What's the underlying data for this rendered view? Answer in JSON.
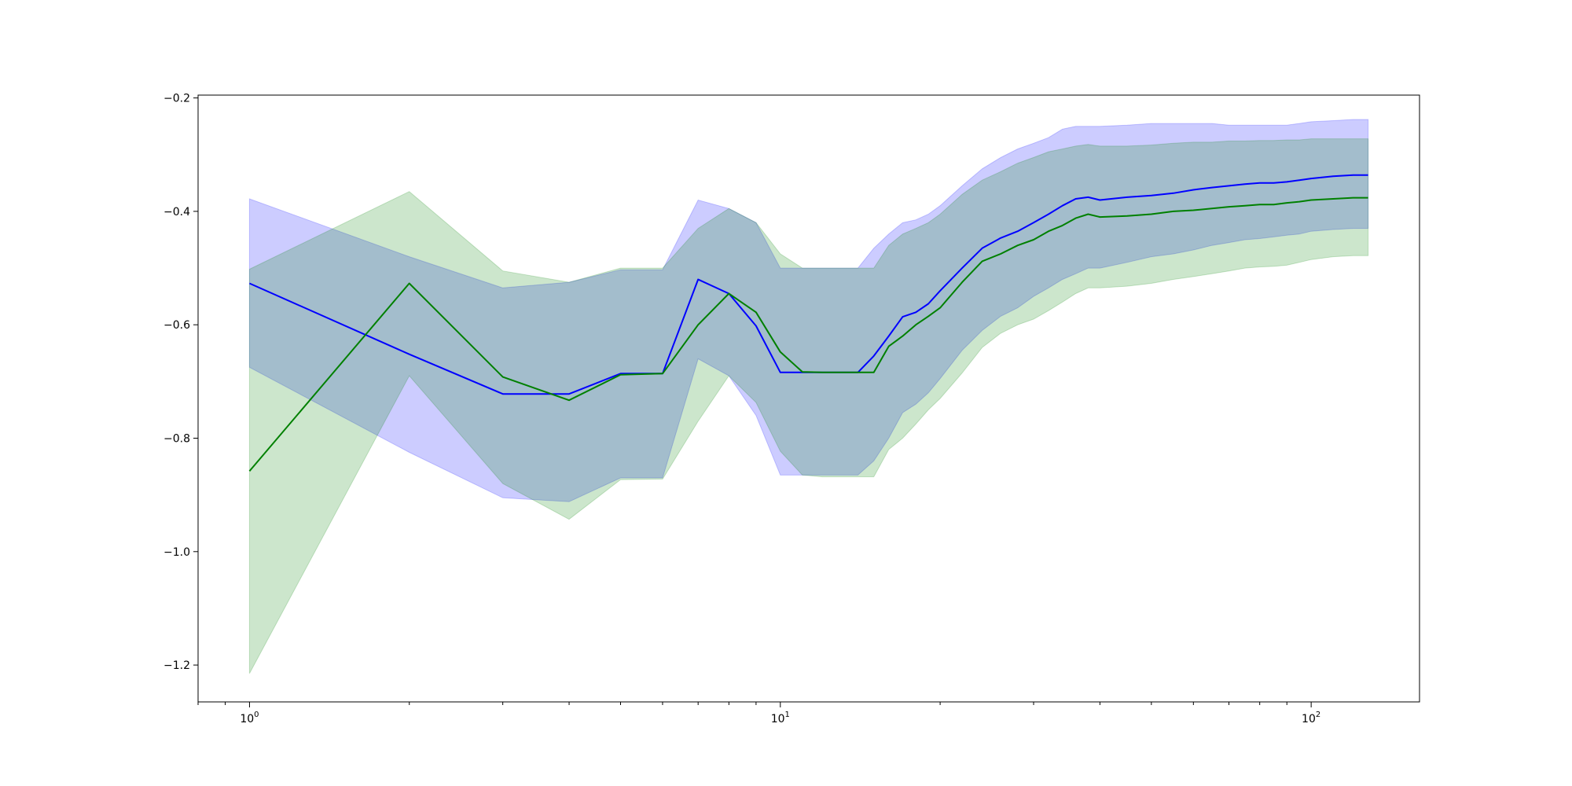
{
  "chart_data": {
    "type": "line",
    "title": "",
    "xlabel": "",
    "ylabel": "",
    "xscale": "log",
    "xlim": [
      0.8,
      160
    ],
    "ylim": [
      -1.265,
      -0.195
    ],
    "yticks": [
      -0.2,
      -0.4,
      -0.6,
      -0.8,
      -1.0,
      -1.2
    ],
    "ytick_labels": [
      "−0.2",
      "−0.4",
      "−0.6",
      "−0.8",
      "−1.0",
      "−1.2"
    ],
    "xticks": [
      1,
      10,
      100
    ],
    "xtick_labels": [
      {
        "base": "10",
        "exp": "0"
      },
      {
        "base": "10",
        "exp": "1"
      },
      {
        "base": "10",
        "exp": "2"
      }
    ],
    "grid": false,
    "series": [
      {
        "color": "#0000ff",
        "band_color": "#0000ff",
        "x": [
          1,
          2,
          3,
          4,
          5,
          6,
          7,
          8,
          9,
          10,
          11,
          12,
          13,
          14,
          15,
          16,
          17,
          18,
          19,
          20,
          22,
          24,
          26,
          28,
          30,
          32,
          34,
          36,
          38,
          40,
          45,
          50,
          55,
          60,
          65,
          70,
          75,
          80,
          85,
          90,
          95,
          100,
          110,
          120,
          128
        ],
        "y": [
          -0.527,
          -0.652,
          -0.722,
          -0.722,
          -0.686,
          -0.686,
          -0.52,
          -0.545,
          -0.602,
          -0.684,
          -0.684,
          -0.684,
          -0.684,
          -0.684,
          -0.655,
          -0.62,
          -0.586,
          -0.578,
          -0.563,
          -0.54,
          -0.5,
          -0.465,
          -0.447,
          -0.435,
          -0.42,
          -0.405,
          -0.39,
          -0.378,
          -0.375,
          -0.38,
          -0.375,
          -0.372,
          -0.368,
          -0.362,
          -0.358,
          -0.355,
          -0.352,
          -0.35,
          -0.35,
          -0.348,
          -0.345,
          -0.342,
          -0.338,
          -0.336,
          -0.336
        ],
        "y_upper": [
          -0.378,
          -0.48,
          -0.535,
          -0.525,
          -0.503,
          -0.503,
          -0.38,
          -0.395,
          -0.42,
          -0.5,
          -0.5,
          -0.5,
          -0.5,
          -0.5,
          -0.465,
          -0.44,
          -0.42,
          -0.415,
          -0.405,
          -0.39,
          -0.355,
          -0.325,
          -0.305,
          -0.29,
          -0.28,
          -0.27,
          -0.255,
          -0.25,
          -0.25,
          -0.25,
          -0.248,
          -0.245,
          -0.245,
          -0.245,
          -0.245,
          -0.248,
          -0.248,
          -0.248,
          -0.248,
          -0.248,
          -0.245,
          -0.242,
          -0.24,
          -0.238,
          -0.238
        ],
        "y_lower": [
          -0.675,
          -0.825,
          -0.905,
          -0.912,
          -0.87,
          -0.87,
          -0.66,
          -0.69,
          -0.76,
          -0.865,
          -0.865,
          -0.865,
          -0.865,
          -0.865,
          -0.84,
          -0.8,
          -0.755,
          -0.74,
          -0.72,
          -0.695,
          -0.645,
          -0.61,
          -0.585,
          -0.57,
          -0.55,
          -0.535,
          -0.52,
          -0.51,
          -0.5,
          -0.5,
          -0.49,
          -0.48,
          -0.475,
          -0.468,
          -0.46,
          -0.455,
          -0.45,
          -0.448,
          -0.445,
          -0.442,
          -0.44,
          -0.435,
          -0.432,
          -0.43,
          -0.43
        ]
      },
      {
        "color": "#008000",
        "band_color": "#008000",
        "x": [
          1,
          2,
          3,
          4,
          5,
          6,
          7,
          8,
          9,
          10,
          11,
          12,
          13,
          14,
          15,
          16,
          17,
          18,
          19,
          20,
          22,
          24,
          26,
          28,
          30,
          32,
          34,
          36,
          38,
          40,
          45,
          50,
          55,
          60,
          65,
          70,
          75,
          80,
          85,
          90,
          95,
          100,
          110,
          120,
          128
        ],
        "y": [
          -0.858,
          -0.527,
          -0.692,
          -0.733,
          -0.688,
          -0.686,
          -0.6,
          -0.545,
          -0.578,
          -0.648,
          -0.683,
          -0.684,
          -0.684,
          -0.684,
          -0.684,
          -0.638,
          -0.62,
          -0.6,
          -0.585,
          -0.57,
          -0.525,
          -0.488,
          -0.475,
          -0.46,
          -0.45,
          -0.435,
          -0.425,
          -0.412,
          -0.405,
          -0.41,
          -0.408,
          -0.405,
          -0.4,
          -0.398,
          -0.395,
          -0.392,
          -0.39,
          -0.388,
          -0.388,
          -0.385,
          -0.383,
          -0.38,
          -0.378,
          -0.376,
          -0.376
        ],
        "y_upper": [
          -0.502,
          -0.365,
          -0.505,
          -0.525,
          -0.5,
          -0.5,
          -0.43,
          -0.395,
          -0.42,
          -0.475,
          -0.5,
          -0.5,
          -0.5,
          -0.5,
          -0.5,
          -0.46,
          -0.44,
          -0.43,
          -0.42,
          -0.405,
          -0.37,
          -0.345,
          -0.33,
          -0.315,
          -0.305,
          -0.295,
          -0.29,
          -0.285,
          -0.282,
          -0.285,
          -0.285,
          -0.283,
          -0.28,
          -0.278,
          -0.278,
          -0.276,
          -0.276,
          -0.275,
          -0.275,
          -0.274,
          -0.274,
          -0.272,
          -0.272,
          -0.272,
          -0.272
        ],
        "y_lower": [
          -1.215,
          -0.69,
          -0.88,
          -0.943,
          -0.873,
          -0.872,
          -0.77,
          -0.69,
          -0.737,
          -0.823,
          -0.865,
          -0.868,
          -0.868,
          -0.868,
          -0.868,
          -0.82,
          -0.8,
          -0.775,
          -0.75,
          -0.73,
          -0.685,
          -0.64,
          -0.615,
          -0.6,
          -0.59,
          -0.575,
          -0.56,
          -0.545,
          -0.535,
          -0.535,
          -0.532,
          -0.527,
          -0.52,
          -0.515,
          -0.51,
          -0.505,
          -0.5,
          -0.498,
          -0.497,
          -0.495,
          -0.49,
          -0.485,
          -0.48,
          -0.478,
          -0.478
        ]
      }
    ]
  }
}
